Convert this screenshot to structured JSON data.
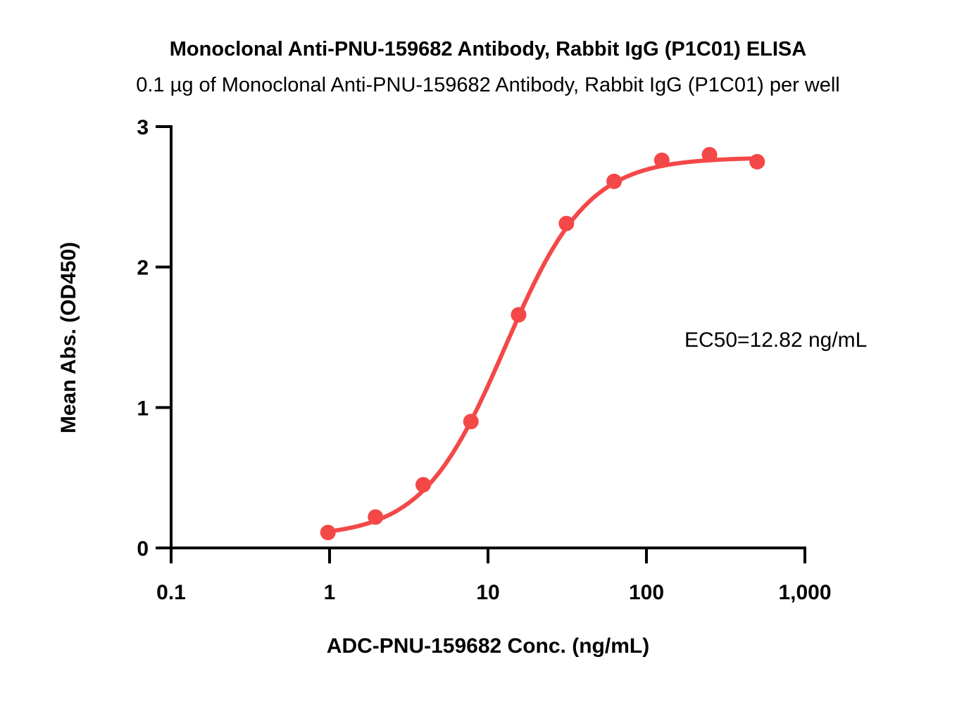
{
  "chart_data": {
    "type": "scatter",
    "title": "Monoclonal Anti-PNU-159682 Antibody, Rabbit IgG (P1C01) ELISA",
    "subtitle": "0.1 µg of Monoclonal Anti-PNU-159682 Antibody, Rabbit IgG (P1C01) per well",
    "xlabel": "ADC-PNU-159682 Conc. (ng/mL)",
    "ylabel": "Mean Abs. (OD450)",
    "xscale": "log",
    "xlim": [
      0.1,
      1000
    ],
    "ylim": [
      0,
      3
    ],
    "xticks": [
      0.1,
      1,
      10,
      100,
      1000
    ],
    "xtick_labels": [
      "0.1",
      "1",
      "10",
      "100",
      "1,000"
    ],
    "yticks": [
      0,
      1,
      2,
      3
    ],
    "ytick_labels": [
      "0",
      "1",
      "2",
      "3"
    ],
    "grid": false,
    "series": [
      {
        "name": "P1C01",
        "color": "#f44848",
        "x": [
          0.977,
          1.95,
          3.9,
          7.8,
          15.6,
          31.25,
          62.5,
          125,
          250,
          500
        ],
        "y": [
          0.11,
          0.22,
          0.45,
          0.9,
          1.66,
          2.31,
          2.61,
          2.76,
          2.8,
          2.75
        ],
        "fit": {
          "model": "4PL",
          "bottom": 0.08,
          "top": 2.78,
          "ec50": 12.82,
          "hill": 1.66
        }
      }
    ],
    "annotation": "EC50=12.82 ng/mL"
  }
}
